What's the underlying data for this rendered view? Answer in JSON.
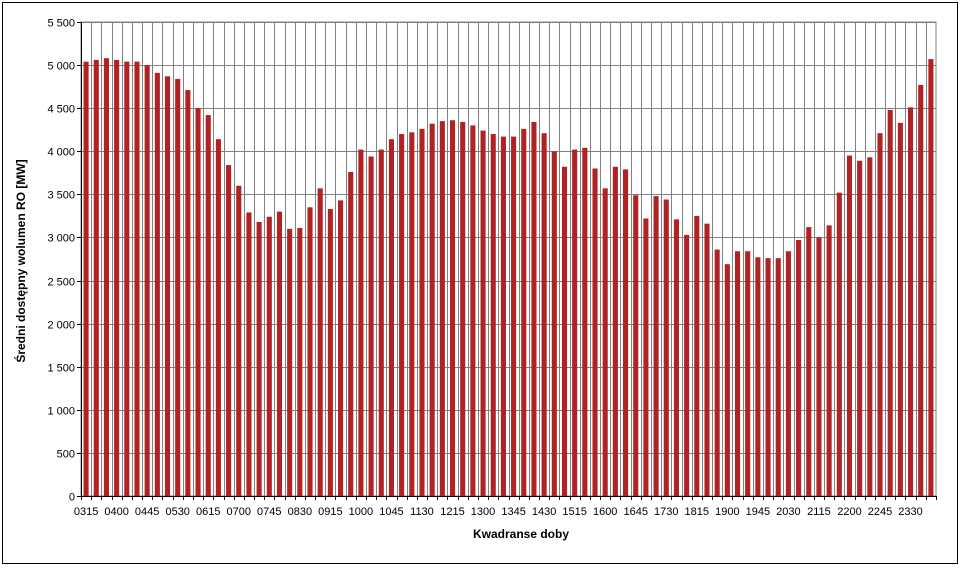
{
  "chart_data": {
    "type": "bar",
    "xlabel": "Kwadranse doby",
    "ylabel": "Średni dostępny wolumen RO [MW]",
    "ylim": [
      0,
      5500
    ],
    "ytick_step": 500,
    "yticks": [
      "0",
      "500",
      "1 000",
      "1 500",
      "2 000",
      "2 500",
      "3 000",
      "3 500",
      "4 000",
      "4 500",
      "5 000",
      "5 500"
    ],
    "grid": true,
    "legend": "none",
    "bar_color": "#B22222",
    "x_label_every": 3,
    "categories": [
      "0315",
      "0330",
      "0345",
      "0400",
      "0415",
      "0430",
      "0445",
      "0500",
      "0515",
      "0530",
      "0545",
      "0600",
      "0615",
      "0630",
      "0645",
      "0700",
      "0715",
      "0730",
      "0745",
      "0800",
      "0815",
      "0830",
      "0845",
      "0900",
      "0915",
      "0930",
      "0945",
      "1000",
      "1015",
      "1030",
      "1045",
      "1100",
      "1115",
      "1130",
      "1145",
      "1200",
      "1215",
      "1230",
      "1245",
      "1300",
      "1315",
      "1330",
      "1345",
      "1400",
      "1415",
      "1430",
      "1445",
      "1500",
      "1515",
      "1530",
      "1545",
      "1600",
      "1615",
      "1630",
      "1645",
      "1700",
      "1715",
      "1730",
      "1745",
      "1800",
      "1815",
      "1830",
      "1845",
      "1900",
      "1915",
      "1930",
      "1945",
      "2000",
      "2015",
      "2030",
      "2045",
      "2100",
      "2115",
      "2130",
      "2145",
      "2200",
      "2215",
      "2230",
      "2245",
      "2300",
      "2315",
      "2330",
      "2345",
      "2400"
    ],
    "values": [
      5040,
      5060,
      5080,
      5060,
      5040,
      5040,
      5000,
      4910,
      4870,
      4840,
      4710,
      4500,
      4420,
      4140,
      3840,
      3600,
      3290,
      3180,
      3240,
      3300,
      3100,
      3110,
      3350,
      3570,
      3330,
      3430,
      3760,
      4020,
      3940,
      4020,
      4140,
      4200,
      4220,
      4260,
      4320,
      4350,
      4360,
      4340,
      4300,
      4240,
      4200,
      4170,
      4170,
      4260,
      4340,
      4210,
      4000,
      3820,
      4020,
      4040,
      3800,
      3570,
      3820,
      3790,
      3490,
      3220,
      3480,
      3440,
      3210,
      3030,
      3250,
      3160,
      2860,
      2690,
      2840,
      2840,
      2770,
      2760,
      2760,
      2840,
      2970,
      3120,
      3000,
      3140,
      3520,
      3950,
      3890,
      3930,
      4210,
      4480,
      4330,
      4510,
      4770,
      5070
    ]
  }
}
